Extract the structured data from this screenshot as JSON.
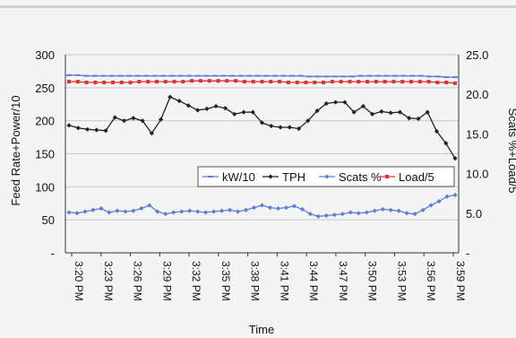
{
  "chart_data": {
    "type": "line",
    "xlabel": "Time",
    "ylabel": "Feed Rate+Power/10",
    "y2label": "Scats %+Load/5",
    "ylim": [
      0,
      300
    ],
    "y2lim": [
      0,
      25
    ],
    "yticks": [
      "300",
      "250",
      "200",
      "150",
      "100",
      "50",
      "-"
    ],
    "y2ticks": [
      "25.0",
      "20.0",
      "15.0",
      "10.0",
      "5.0",
      "-"
    ],
    "x_tick_labels": [
      "3:20 PM",
      "3:23 PM",
      "3:26 PM",
      "3:29 PM",
      "3:32 PM",
      "3:35 PM",
      "3:38 PM",
      "3:41 PM",
      "3:44 PM",
      "3:47 PM",
      "3:50 PM",
      "3:53 PM",
      "3:56 PM",
      "3:59 PM"
    ],
    "grid": "horizontal",
    "legend_position": "center-right",
    "series": [
      {
        "name": "kW/10",
        "axis": "left",
        "color": "#5b7fe0",
        "marker": "dash",
        "values": [
          269,
          269,
          268,
          268,
          268,
          268,
          268,
          268,
          268,
          268,
          268,
          268,
          268,
          268,
          268,
          268,
          268,
          268,
          268,
          268,
          268,
          268,
          268,
          268,
          268,
          268,
          268,
          268,
          267,
          267,
          267,
          267,
          267,
          267,
          268,
          268,
          268,
          268,
          268,
          268,
          268,
          268,
          267,
          267,
          266,
          266
        ]
      },
      {
        "name": "TPH",
        "axis": "left",
        "color": "#222222",
        "marker": "diamond",
        "values": [
          193,
          189,
          187,
          186,
          185,
          205,
          200,
          204,
          200,
          181,
          202,
          236,
          230,
          223,
          216,
          218,
          222,
          219,
          210,
          213,
          213,
          197,
          192,
          190,
          190,
          188,
          200,
          215,
          226,
          228,
          228,
          213,
          222,
          210,
          214,
          212,
          213,
          204,
          203,
          213,
          184,
          166,
          143
        ]
      },
      {
        "name": "Scats %",
        "axis": "right",
        "color": "#5b7fe0",
        "marker": "diamond",
        "values": [
          5.1,
          5.0,
          5.2,
          5.4,
          5.6,
          5.1,
          5.3,
          5.2,
          5.3,
          5.6,
          6.0,
          5.2,
          4.9,
          5.1,
          5.2,
          5.3,
          5.2,
          5.1,
          5.2,
          5.3,
          5.4,
          5.2,
          5.4,
          5.7,
          6.0,
          5.7,
          5.6,
          5.7,
          5.9,
          5.5,
          4.9,
          4.6,
          4.7,
          4.8,
          4.9,
          5.1,
          5.0,
          5.1,
          5.3,
          5.5,
          5.4,
          5.3,
          5.0,
          4.9,
          5.4,
          6.0,
          6.5,
          7.1,
          7.3
        ]
      },
      {
        "name": "Load/5",
        "axis": "right",
        "color": "#e03030",
        "marker": "square",
        "values": [
          21.6,
          21.6,
          21.5,
          21.5,
          21.5,
          21.5,
          21.5,
          21.5,
          21.6,
          21.6,
          21.6,
          21.6,
          21.6,
          21.6,
          21.7,
          21.7,
          21.7,
          21.7,
          21.7,
          21.7,
          21.6,
          21.6,
          21.6,
          21.6,
          21.6,
          21.5,
          21.5,
          21.5,
          21.5,
          21.5,
          21.6,
          21.6,
          21.6,
          21.6,
          21.6,
          21.6,
          21.6,
          21.6,
          21.6,
          21.6,
          21.6,
          21.6,
          21.5,
          21.5,
          21.4
        ]
      }
    ]
  }
}
